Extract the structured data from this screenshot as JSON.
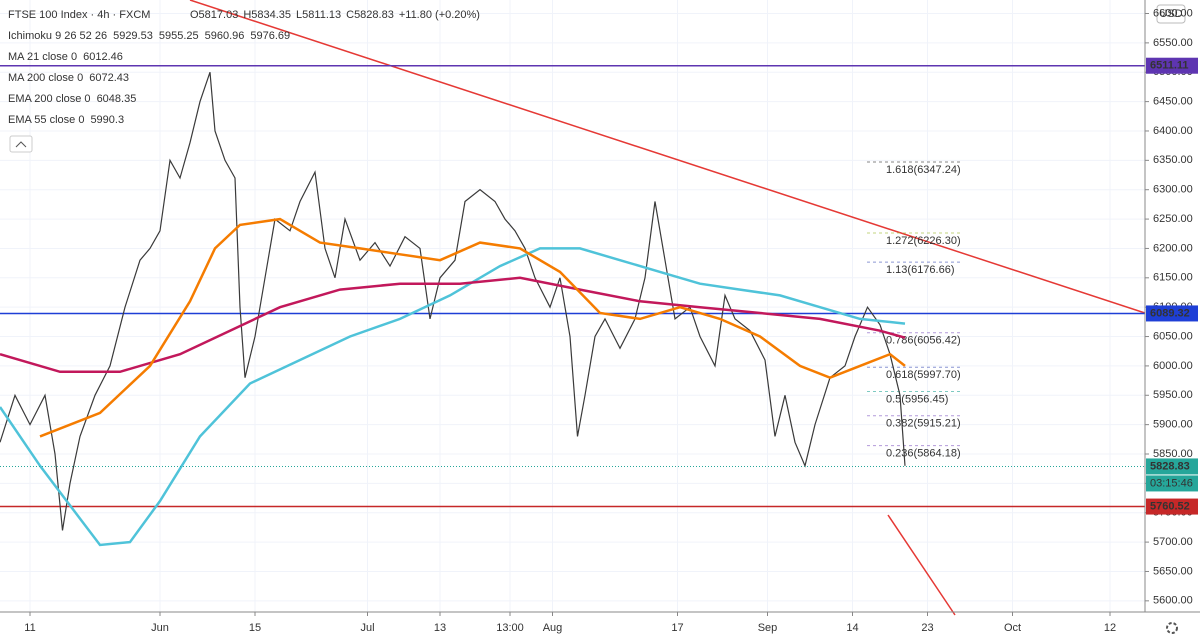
{
  "chart_data": {
    "type": "line",
    "title": "FTSE 100 Index · 4h · FXCM",
    "quote": [
      "O5817.03",
      "H5834.35",
      "L5811.13",
      "C5828.83",
      "+11.80 (+0.20%)"
    ],
    "currency": "USD",
    "xlim": [
      0,
      458
    ],
    "xticks": [
      {
        "value": 12,
        "label": "11"
      },
      {
        "value": 64,
        "label": "Jun"
      },
      {
        "value": 102,
        "label": "15"
      },
      {
        "value": 147,
        "label": "Jul"
      },
      {
        "value": 176,
        "label": "13"
      },
      {
        "value": 204,
        "label": "13:00"
      },
      {
        "value": 221,
        "label": "Aug"
      },
      {
        "value": 271,
        "label": "17"
      },
      {
        "value": 307,
        "label": "Sep"
      },
      {
        "value": 341,
        "label": "14"
      },
      {
        "value": 371,
        "label": "23"
      },
      {
        "value": 405,
        "label": "Oct"
      },
      {
        "value": 444,
        "label": "12"
      }
    ],
    "ylim": [
      5581,
      6623
    ],
    "yticks": [
      {
        "value": 5600,
        "label": "5600.00"
      },
      {
        "value": 5650,
        "label": "5650.00"
      },
      {
        "value": 5700,
        "label": "5700.00"
      },
      {
        "value": 5750,
        "label": "5750.00"
      },
      {
        "value": 5800,
        "label": "5800.00"
      },
      {
        "value": 5850,
        "label": "5850.00"
      },
      {
        "value": 5900,
        "label": "5900.00"
      },
      {
        "value": 5950,
        "label": "5950.00"
      },
      {
        "value": 6000,
        "label": "6000.00"
      },
      {
        "value": 6050,
        "label": "6050.00"
      },
      {
        "value": 6100,
        "label": "6100.00"
      },
      {
        "value": 6150,
        "label": "6150.00"
      },
      {
        "value": 6200,
        "label": "6200.00"
      },
      {
        "value": 6250,
        "label": "6250.00"
      },
      {
        "value": 6300,
        "label": "6300.00"
      },
      {
        "value": 6350,
        "label": "6350.00"
      },
      {
        "value": 6400,
        "label": "6400.00"
      },
      {
        "value": 6450,
        "label": "6450.00"
      },
      {
        "value": 6500,
        "label": "6500.00"
      },
      {
        "value": 6550,
        "label": "6550.00"
      },
      {
        "value": 6600,
        "label": "6600.00"
      }
    ],
    "series": [
      {
        "color": "#3a3a3a",
        "x": [
          0,
          6,
          12,
          18,
          22,
          25,
          28,
          32,
          38,
          44,
          50,
          56,
          60,
          64,
          68,
          72,
          76,
          80,
          84,
          86,
          90,
          94,
          96,
          98,
          102,
          106,
          110,
          116,
          120,
          126,
          130,
          134,
          138,
          144,
          150,
          156,
          162,
          168,
          172,
          176,
          182,
          186,
          192,
          198,
          202,
          206,
          210,
          214,
          220,
          224,
          228,
          231,
          234,
          238,
          242,
          248,
          254,
          258,
          262,
          266,
          270,
          276,
          280,
          286,
          290,
          294,
          300,
          306,
          310,
          314,
          318,
          322,
          326,
          332,
          338,
          342,
          347,
          352,
          356,
          360,
          362
        ],
        "values": [
          5870,
          5950,
          5900,
          5950,
          5850,
          5720,
          5800,
          5880,
          5950,
          6000,
          6100,
          6180,
          6200,
          6230,
          6350,
          6320,
          6380,
          6450,
          6500,
          6400,
          6350,
          6320,
          6100,
          5980,
          6050,
          6150,
          6250,
          6230,
          6280,
          6330,
          6200,
          6150,
          6250,
          6180,
          6210,
          6170,
          6220,
          6200,
          6080,
          6150,
          6180,
          6280,
          6300,
          6280,
          6250,
          6230,
          6200,
          6150,
          6100,
          6150,
          6050,
          5880,
          5950,
          6050,
          6080,
          6030,
          6080,
          6150,
          6280,
          6180,
          6080,
          6100,
          6050,
          6000,
          6120,
          6080,
          6060,
          6010,
          5880,
          5950,
          5870,
          5830,
          5900,
          5980,
          6000,
          6050,
          6100,
          6070,
          6020,
          5950,
          5830
        ]
      },
      {
        "name": "Ichimoku 9 26 52 26",
        "last_values": [
          5929.53,
          5955.25,
          5960.96,
          5976.69
        ],
        "last_colors": [
          "#2962ff",
          "#c2185b",
          "#2e7d32",
          "#d32f2f"
        ]
      },
      {
        "name": "MA 21 close 0",
        "last_values": [
          6012.46
        ],
        "last_colors": [
          "#1b5e20"
        ]
      },
      {
        "name": "MA 200 close 0",
        "color": "#4fc3d9",
        "last_values": [
          6072.43
        ],
        "last_colors": [
          "#26a6bf"
        ],
        "x": [
          0,
          16,
          32,
          40,
          52,
          64,
          80,
          100,
          120,
          140,
          160,
          180,
          200,
          216,
          232,
          248,
          264,
          280,
          296,
          312,
          328,
          344,
          362
        ],
        "values": [
          5930,
          5830,
          5740,
          5695,
          5700,
          5770,
          5880,
          5970,
          6010,
          6050,
          6080,
          6120,
          6170,
          6200,
          6200,
          6180,
          6160,
          6140,
          6130,
          6120,
          6100,
          6080,
          6072
        ]
      },
      {
        "name": "EMA 200 close 0",
        "color": "#c2185b",
        "last_values": [
          6048.35
        ],
        "last_colors": [
          "#c2185b"
        ],
        "x": [
          0,
          24,
          48,
          72,
          92,
          112,
          136,
          160,
          184,
          208,
          232,
          256,
          280,
          304,
          328,
          352,
          362
        ],
        "values": [
          6020,
          5990,
          5990,
          6020,
          6060,
          6100,
          6130,
          6140,
          6140,
          6150,
          6130,
          6110,
          6100,
          6090,
          6080,
          6060,
          6048
        ]
      },
      {
        "name": "EMA 55 close 0",
        "color": "#f57c00",
        "last_values": [
          5990.3
        ],
        "last_colors": [
          "#f57c00"
        ],
        "x": [
          16,
          40,
          60,
          76,
          86,
          96,
          112,
          128,
          144,
          160,
          176,
          192,
          208,
          224,
          240,
          256,
          272,
          288,
          304,
          320,
          332,
          344,
          356,
          362
        ],
        "values": [
          5880,
          5920,
          6000,
          6110,
          6200,
          6240,
          6250,
          6210,
          6200,
          6190,
          6180,
          6210,
          6200,
          6160,
          6090,
          6080,
          6100,
          6080,
          6050,
          6000,
          5980,
          6000,
          6020,
          6000
        ]
      }
    ],
    "levels": [
      {
        "value": 6511.11,
        "color": "#5e35b1"
      },
      {
        "value": 6089.32,
        "color": "#1e3fd6"
      },
      {
        "value": 5760.52,
        "color": "#c62828"
      }
    ],
    "last_price": 5828.83,
    "countdown": "03:15:46",
    "fib": [
      {
        "label": "1.618(6347.24)",
        "value": 6347.24,
        "color": "#333333"
      },
      {
        "label": "1.272(6226.30)",
        "value": 6226.3,
        "color": "#9bbb2a"
      },
      {
        "label": "1.13(6176.66)",
        "value": 6176.66,
        "color": "#3f51b5"
      },
      {
        "label": "0.786(6056.42)",
        "value": 6056.42,
        "color": "#7e57c2"
      },
      {
        "label": "0.618(5997.70)",
        "value": 5997.7,
        "color": "#3f51b5"
      },
      {
        "label": "0.5(5956.45)",
        "value": 5956.45,
        "color": "#26a69a"
      },
      {
        "label": "0.382(5915.21)",
        "value": 5915.21,
        "color": "#7e57c2"
      },
      {
        "label": "0.236(5864.18)",
        "value": 5864.18,
        "color": "#7e57c2"
      }
    ]
  }
}
